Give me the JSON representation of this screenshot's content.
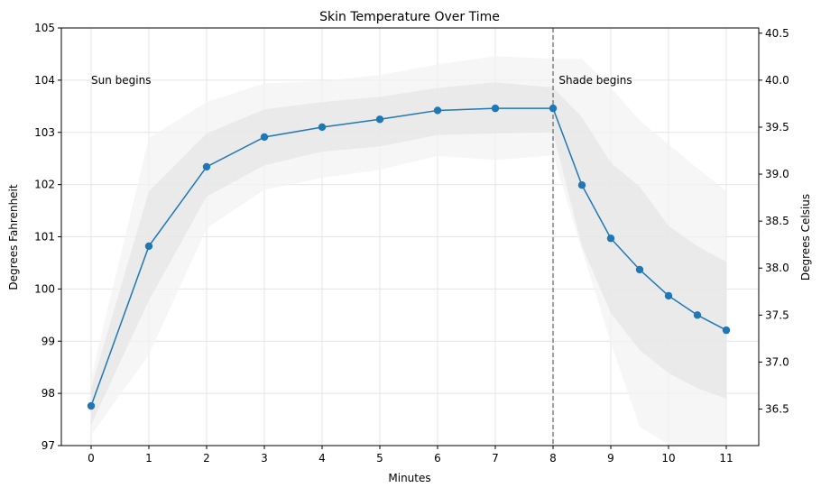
{
  "chart_data": {
    "type": "line",
    "title": "Skin Temperature Over Time",
    "xlabel": "Minutes",
    "ylabel": "Degrees Fahrenheit",
    "ylabel_right": "Degrees Celsius",
    "xlim": [
      -0.5,
      11.5
    ],
    "ylim": [
      97,
      105
    ],
    "ylim_right": [
      36.11,
      40.56
    ],
    "grid": true,
    "x_ticks": [
      "0",
      "1",
      "2",
      "3",
      "4",
      "5",
      "6",
      "7",
      "8",
      "9",
      "10",
      "11"
    ],
    "y_ticks": [
      "97",
      "98",
      "99",
      "100",
      "101",
      "102",
      "103",
      "104",
      "105"
    ],
    "y_ticks_right": [
      "36.5",
      "37.0",
      "37.5",
      "38.0",
      "38.5",
      "39.0",
      "39.5",
      "40.0",
      "40.5"
    ],
    "x": [
      0,
      1,
      2,
      3,
      4,
      5,
      6,
      7,
      8,
      8.5,
      9,
      9.5,
      10,
      10.5,
      11
    ],
    "series": [
      {
        "values": [
          97.76,
          100.82,
          102.34,
          102.91,
          103.1,
          103.25,
          103.42,
          103.46,
          103.46,
          101.99,
          100.97,
          100.37,
          99.87,
          99.5,
          99.21
        ],
        "color": "#1f77b4",
        "marker": "circle"
      }
    ],
    "bands": [
      {
        "level": "outer",
        "color": "#f3f3f3",
        "upper": [
          98.3,
          102.89,
          103.58,
          103.94,
          103.98,
          104.1,
          104.3,
          104.46,
          104.41,
          104.41,
          103.86,
          103.23,
          102.77,
          102.31,
          101.88
        ],
        "lower": [
          97.2,
          98.74,
          101.16,
          101.9,
          102.13,
          102.28,
          102.55,
          102.47,
          102.56,
          100.75,
          98.97,
          97.36,
          97.02,
          96.9,
          96.9
        ]
      },
      {
        "level": "inner",
        "color": "#e6e6e6",
        "upper": [
          98.1,
          101.87,
          102.98,
          103.44,
          103.58,
          103.68,
          103.85,
          103.96,
          103.86,
          103.29,
          102.42,
          101.96,
          101.21,
          100.82,
          100.52
        ],
        "lower": [
          97.4,
          99.78,
          101.77,
          102.37,
          102.63,
          102.73,
          102.95,
          102.98,
          103.0,
          100.82,
          99.54,
          98.83,
          98.39,
          98.1,
          97.9
        ]
      }
    ],
    "vline": {
      "x": 8,
      "style": "dashed",
      "color": "#808080"
    },
    "annotations": [
      {
        "text": "Sun begins",
        "x": 0,
        "y": 104
      },
      {
        "text": "Shade begins",
        "x": 8.1,
        "y": 104
      }
    ]
  }
}
